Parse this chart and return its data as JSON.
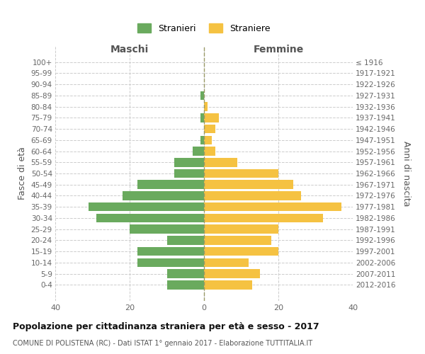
{
  "age_groups": [
    "100+",
    "95-99",
    "90-94",
    "85-89",
    "80-84",
    "75-79",
    "70-74",
    "65-69",
    "60-64",
    "55-59",
    "50-54",
    "45-49",
    "40-44",
    "35-39",
    "30-34",
    "25-29",
    "20-24",
    "15-19",
    "10-14",
    "5-9",
    "0-4"
  ],
  "birth_years": [
    "≤ 1916",
    "1917-1921",
    "1922-1926",
    "1927-1931",
    "1932-1936",
    "1937-1941",
    "1942-1946",
    "1947-1951",
    "1952-1956",
    "1957-1961",
    "1962-1966",
    "1967-1971",
    "1972-1976",
    "1977-1981",
    "1982-1986",
    "1987-1991",
    "1992-1996",
    "1997-2001",
    "2002-2006",
    "2007-2011",
    "2012-2016"
  ],
  "maschi": [
    0,
    0,
    0,
    1,
    0,
    1,
    0,
    1,
    3,
    8,
    8,
    18,
    22,
    31,
    29,
    20,
    10,
    18,
    18,
    10,
    10
  ],
  "femmine": [
    0,
    0,
    0,
    0,
    1,
    4,
    3,
    2,
    3,
    9,
    20,
    24,
    26,
    37,
    32,
    20,
    18,
    20,
    12,
    15,
    13
  ],
  "maschi_color": "#6aaa5e",
  "femmine_color": "#f5c242",
  "title": "Popolazione per cittadinanza straniera per età e sesso - 2017",
  "subtitle": "COMUNE DI POLISTENA (RC) - Dati ISTAT 1° gennaio 2017 - Elaborazione TUTTITALIA.IT",
  "ylabel_left": "Fasce di età",
  "ylabel_right": "Anni di nascita",
  "xlabel_left": "Maschi",
  "xlabel_right": "Femmine",
  "xlim": 40,
  "legend_stranieri": "Stranieri",
  "legend_straniere": "Straniere",
  "bg_color": "#ffffff",
  "grid_color": "#cccccc",
  "bar_height": 0.8
}
